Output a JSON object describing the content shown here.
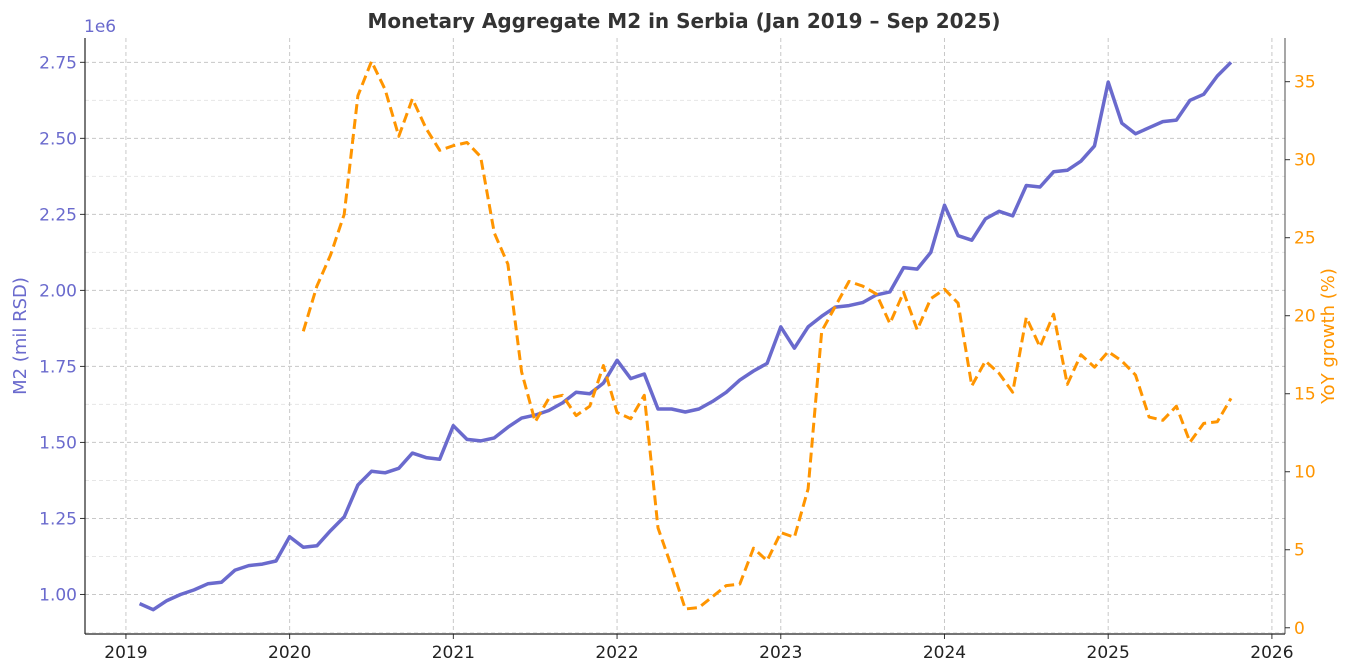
{
  "chart_data": {
    "type": "line",
    "title": "Monetary Aggregate M2 in Serbia (Jan 2019 – Sep 2025)",
    "xlabel": "",
    "ylabel": "M2 (mil RSD)",
    "y2label": "YoY growth (%)",
    "y_offset_label": "1e6",
    "x_ticks": [
      "2019",
      "2020",
      "2021",
      "2022",
      "2023",
      "2024",
      "2025",
      "2026"
    ],
    "y_ticks": [
      "1.00",
      "1.25",
      "1.50",
      "1.75",
      "2.00",
      "2.25",
      "2.50",
      "2.75"
    ],
    "y2_ticks": [
      "0",
      "5",
      "10",
      "15",
      "20",
      "25",
      "30",
      "35"
    ],
    "xlim": [
      2018.75,
      2026.08
    ],
    "ylim": [
      0.87,
      2.83
    ],
    "y2lim": [
      -0.4,
      37.8
    ],
    "grid": true,
    "start": "2019-01",
    "series": [
      {
        "name": "M2",
        "axis": "left",
        "color": "#6a6acd",
        "style": "solid",
        "start_index": 0,
        "values": [
          0.97,
          0.95,
          0.98,
          1.0,
          1.015,
          1.035,
          1.04,
          1.08,
          1.095,
          1.1,
          1.11,
          1.19,
          1.155,
          1.16,
          1.21,
          1.255,
          1.36,
          1.405,
          1.4,
          1.415,
          1.465,
          1.45,
          1.445,
          1.555,
          1.51,
          1.505,
          1.515,
          1.55,
          1.58,
          1.59,
          1.605,
          1.63,
          1.665,
          1.66,
          1.695,
          1.77,
          1.71,
          1.725,
          1.61,
          1.61,
          1.6,
          1.61,
          1.635,
          1.665,
          1.705,
          1.735,
          1.76,
          1.88,
          1.81,
          1.88,
          1.915,
          1.945,
          1.95,
          1.96,
          1.985,
          1.995,
          2.075,
          2.07,
          2.125,
          2.28,
          2.18,
          2.165,
          2.235,
          2.26,
          2.245,
          2.345,
          2.34,
          2.39,
          2.395,
          2.425,
          2.475,
          2.685,
          2.55,
          2.515,
          2.535,
          2.555,
          2.56,
          2.625,
          2.645,
          2.705,
          2.75
        ]
      },
      {
        "name": "YoY growth",
        "axis": "right",
        "color": "#ff9500",
        "style": "dashed",
        "start_index": 12,
        "values": [
          19.0,
          21.9,
          23.9,
          26.5,
          34.1,
          36.3,
          34.5,
          31.5,
          33.9,
          32.0,
          30.6,
          30.9,
          31.1,
          30.2,
          25.3,
          23.3,
          16.4,
          13.2,
          14.7,
          14.9,
          13.6,
          14.2,
          16.8,
          13.8,
          13.4,
          14.9,
          6.4,
          3.9,
          1.2,
          1.3,
          2.0,
          2.7,
          2.8,
          5.1,
          4.3,
          6.1,
          5.8,
          8.9,
          19.0,
          20.6,
          22.2,
          21.9,
          21.4,
          19.5,
          21.5,
          19.1,
          21.1,
          21.7,
          20.8,
          15.5,
          17.1,
          16.3,
          15.1,
          19.9,
          18.0,
          20.1,
          15.6,
          17.5,
          16.7,
          17.7,
          17.1,
          16.2,
          13.5,
          13.3,
          14.2,
          11.9,
          13.1,
          13.2,
          14.7
        ]
      }
    ]
  }
}
